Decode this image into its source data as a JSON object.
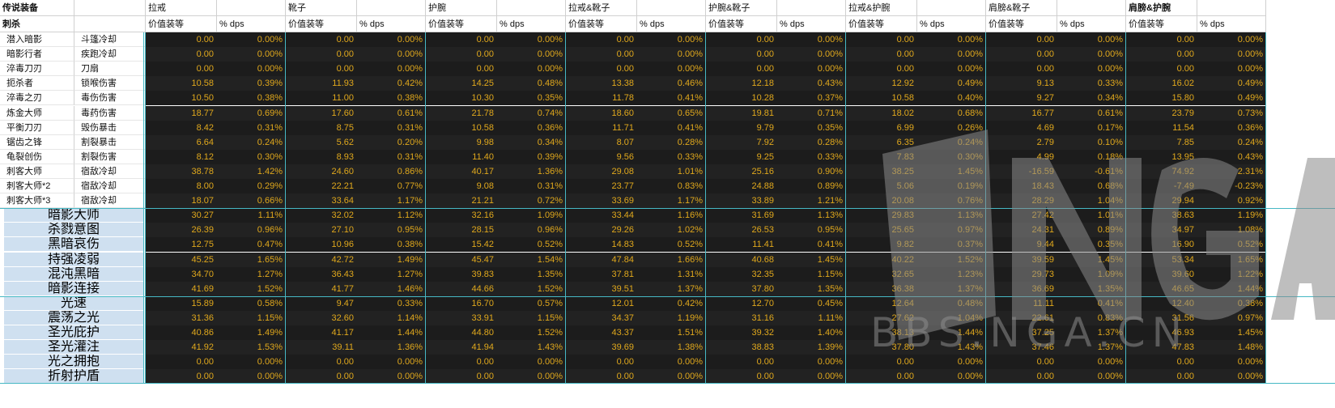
{
  "header": {
    "corner_title": "传说装备",
    "spec_label": "刺杀",
    "groups": [
      "拉戒",
      "靴子",
      "护腕",
      "拉戒&靴子",
      "护腕&靴子",
      "拉戒&护腕",
      "肩膀&靴子",
      "肩膀&护腕"
    ],
    "sub_value": "价值装等",
    "sub_dps": "% dps"
  },
  "rows": [
    {
      "name": "潜入暗影",
      "desc": "斗篷冷却",
      "vals": [
        "0.00",
        "0.00%",
        "0.00",
        "0.00%",
        "0.00",
        "0.00%",
        "0.00",
        "0.00%",
        "0.00",
        "0.00%",
        "0.00",
        "0.00%",
        "0.00",
        "0.00%",
        "0.00",
        "0.00%"
      ]
    },
    {
      "name": "暗影行者",
      "desc": "疾跑冷却",
      "vals": [
        "0.00",
        "0.00%",
        "0.00",
        "0.00%",
        "0.00",
        "0.00%",
        "0.00",
        "0.00%",
        "0.00",
        "0.00%",
        "0.00",
        "0.00%",
        "0.00",
        "0.00%",
        "0.00",
        "0.00%"
      ]
    },
    {
      "name": "淬毒刀刃",
      "desc": "刀扇",
      "vals": [
        "0.00",
        "0.00%",
        "0.00",
        "0.00%",
        "0.00",
        "0.00%",
        "0.00",
        "0.00%",
        "0.00",
        "0.00%",
        "0.00",
        "0.00%",
        "0.00",
        "0.00%",
        "0.00",
        "0.00%"
      ]
    },
    {
      "name": "扼杀者",
      "desc": "锁喉伤害",
      "vals": [
        "10.58",
        "0.39%",
        "11.93",
        "0.42%",
        "14.25",
        "0.48%",
        "13.38",
        "0.46%",
        "12.18",
        "0.43%",
        "12.92",
        "0.49%",
        "9.13",
        "0.33%",
        "16.02",
        "0.49%"
      ]
    },
    {
      "name": "淬毒之刃",
      "desc": "毒伤伤害",
      "vals": [
        "10.50",
        "0.38%",
        "11.00",
        "0.38%",
        "10.30",
        "0.35%",
        "11.78",
        "0.41%",
        "10.28",
        "0.37%",
        "10.58",
        "0.40%",
        "9.27",
        "0.34%",
        "15.80",
        "0.49%"
      ]
    },
    {
      "name": "炼金大师",
      "desc": "毒药伤害",
      "vals": [
        "18.77",
        "0.69%",
        "17.60",
        "0.61%",
        "21.78",
        "0.74%",
        "18.60",
        "0.65%",
        "19.81",
        "0.71%",
        "18.02",
        "0.68%",
        "16.77",
        "0.61%",
        "23.79",
        "0.73%"
      ]
    },
    {
      "name": "平衡刀刃",
      "desc": "毁伤暴击",
      "vals": [
        "8.42",
        "0.31%",
        "8.75",
        "0.31%",
        "10.58",
        "0.36%",
        "11.71",
        "0.41%",
        "9.79",
        "0.35%",
        "6.99",
        "0.26%",
        "4.69",
        "0.17%",
        "11.54",
        "0.36%"
      ]
    },
    {
      "name": "锯齿之锋",
      "desc": "割裂暴击",
      "vals": [
        "6.64",
        "0.24%",
        "5.62",
        "0.20%",
        "9.98",
        "0.34%",
        "8.07",
        "0.28%",
        "7.92",
        "0.28%",
        "6.35",
        "0.24%",
        "2.79",
        "0.10%",
        "7.85",
        "0.24%"
      ]
    },
    {
      "name": "龟裂创伤",
      "desc": "割裂伤害",
      "vals": [
        "8.12",
        "0.30%",
        "8.93",
        "0.31%",
        "11.40",
        "0.39%",
        "9.56",
        "0.33%",
        "9.25",
        "0.33%",
        "7.83",
        "0.30%",
        "4.99",
        "0.18%",
        "13.95",
        "0.43%"
      ]
    },
    {
      "name": "刺客大师",
      "desc": "宿敌冷却",
      "vals": [
        "38.78",
        "1.42%",
        "24.60",
        "0.86%",
        "40.17",
        "1.36%",
        "29.08",
        "1.01%",
        "25.16",
        "0.90%",
        "38.25",
        "1.45%",
        "-16.59",
        "-0.61%",
        "74.92",
        "2.31%"
      ]
    },
    {
      "name": "刺客大师*2",
      "desc": "宿敌冷却",
      "vals": [
        "8.00",
        "0.29%",
        "22.21",
        "0.77%",
        "9.08",
        "0.31%",
        "23.77",
        "0.83%",
        "24.88",
        "0.89%",
        "5.06",
        "0.19%",
        "18.43",
        "0.68%",
        "-7.49",
        "-0.23%"
      ]
    },
    {
      "name": "刺客大师*3",
      "desc": "宿敌冷却",
      "vals": [
        "18.07",
        "0.66%",
        "33.64",
        "1.17%",
        "21.21",
        "0.72%",
        "33.69",
        "1.17%",
        "33.89",
        "1.21%",
        "20.08",
        "0.76%",
        "28.29",
        "1.04%",
        "29.94",
        "0.92%"
      ]
    }
  ],
  "talents": [
    {
      "name": "暗影大师",
      "vals": [
        "30.27",
        "1.11%",
        "32.02",
        "1.12%",
        "32.16",
        "1.09%",
        "33.44",
        "1.16%",
        "31.69",
        "1.13%",
        "29.83",
        "1.13%",
        "27.42",
        "1.01%",
        "38.63",
        "1.19%"
      ]
    },
    {
      "name": "杀戮意图",
      "vals": [
        "26.39",
        "0.96%",
        "27.10",
        "0.95%",
        "28.15",
        "0.96%",
        "29.26",
        "1.02%",
        "26.53",
        "0.95%",
        "25.65",
        "0.97%",
        "24.31",
        "0.89%",
        "34.97",
        "1.08%"
      ]
    },
    {
      "name": "黑暗哀伤",
      "vals": [
        "12.75",
        "0.47%",
        "10.96",
        "0.38%",
        "15.42",
        "0.52%",
        "14.83",
        "0.52%",
        "11.41",
        "0.41%",
        "9.82",
        "0.37%",
        "9.44",
        "0.35%",
        "16.90",
        "0.52%"
      ]
    },
    {
      "name": "持强凌弱",
      "vals": [
        "45.25",
        "1.65%",
        "42.72",
        "1.49%",
        "45.47",
        "1.54%",
        "47.84",
        "1.66%",
        "40.68",
        "1.45%",
        "40.22",
        "1.52%",
        "39.59",
        "1.45%",
        "53.34",
        "1.65%"
      ]
    },
    {
      "name": "混沌黑暗",
      "vals": [
        "34.70",
        "1.27%",
        "36.43",
        "1.27%",
        "39.83",
        "1.35%",
        "37.81",
        "1.31%",
        "32.35",
        "1.15%",
        "32.65",
        "1.23%",
        "29.73",
        "1.09%",
        "39.60",
        "1.22%"
      ]
    },
    {
      "name": "暗影连接",
      "vals": [
        "41.69",
        "1.52%",
        "41.77",
        "1.46%",
        "44.66",
        "1.52%",
        "39.51",
        "1.37%",
        "37.80",
        "1.35%",
        "36.38",
        "1.37%",
        "36.69",
        "1.35%",
        "46.65",
        "1.44%"
      ]
    },
    {
      "name": "光速",
      "vals": [
        "15.89",
        "0.58%",
        "9.47",
        "0.33%",
        "16.70",
        "0.57%",
        "12.01",
        "0.42%",
        "12.70",
        "0.45%",
        "12.64",
        "0.48%",
        "11.11",
        "0.41%",
        "12.40",
        "0.38%"
      ]
    },
    {
      "name": "震荡之光",
      "vals": [
        "31.36",
        "1.15%",
        "32.60",
        "1.14%",
        "33.91",
        "1.15%",
        "34.37",
        "1.19%",
        "31.16",
        "1.11%",
        "27.62",
        "1.04%",
        "22.61",
        "0.83%",
        "31.56",
        "0.97%"
      ]
    },
    {
      "name": "圣光庇护",
      "vals": [
        "40.86",
        "1.49%",
        "41.17",
        "1.44%",
        "44.80",
        "1.52%",
        "43.37",
        "1.51%",
        "39.32",
        "1.40%",
        "38.13",
        "1.44%",
        "37.25",
        "1.37%",
        "46.93",
        "1.45%"
      ]
    },
    {
      "name": "圣光灌注",
      "vals": [
        "41.92",
        "1.53%",
        "39.11",
        "1.36%",
        "41.94",
        "1.43%",
        "39.69",
        "1.38%",
        "38.83",
        "1.39%",
        "37.80",
        "1.43%",
        "37.46",
        "1.37%",
        "47.83",
        "1.48%"
      ]
    },
    {
      "name": "光之拥抱",
      "vals": [
        "0.00",
        "0.00%",
        "0.00",
        "0.00%",
        "0.00",
        "0.00%",
        "0.00",
        "0.00%",
        "0.00",
        "0.00%",
        "0.00",
        "0.00%",
        "0.00",
        "0.00%",
        "0.00",
        "0.00%"
      ]
    },
    {
      "name": "折射护盾",
      "vals": [
        "0.00",
        "0.00%",
        "0.00",
        "0.00%",
        "0.00",
        "0.00%",
        "0.00",
        "0.00%",
        "0.00",
        "0.00%",
        "0.00",
        "0.00%",
        "0.00",
        "0.00%",
        "0.00",
        "0.00%"
      ]
    }
  ],
  "watermark": {
    "text": "BBS.NGA.CN",
    "logo": "NGA",
    "color": "#808080"
  }
}
